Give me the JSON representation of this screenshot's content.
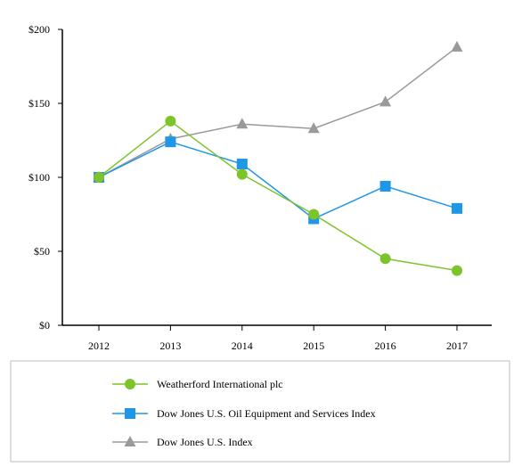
{
  "chart_data": {
    "type": "line",
    "x": [
      "2012",
      "2013",
      "2014",
      "2015",
      "2016",
      "2017"
    ],
    "y_ticks": [
      "$0",
      "$50",
      "$100",
      "$150",
      "$200"
    ],
    "ylim": [
      0,
      200
    ],
    "grid": false,
    "legend_position": "bottom",
    "series": [
      {
        "name": "Weatherford International plc",
        "color": "#7dc42b",
        "marker": "circle",
        "values": [
          100,
          138,
          102,
          75,
          45,
          37
        ]
      },
      {
        "name": "Dow Jones U.S. Oil Equipment and Services Index",
        "color": "#1f96e6",
        "marker": "square",
        "values": [
          100,
          124,
          109,
          72,
          94,
          79
        ]
      },
      {
        "name": "Dow Jones U.S. Index",
        "color": "#9a9a9a",
        "marker": "triangle",
        "values": [
          100,
          126,
          136,
          133,
          151,
          188
        ]
      }
    ]
  }
}
